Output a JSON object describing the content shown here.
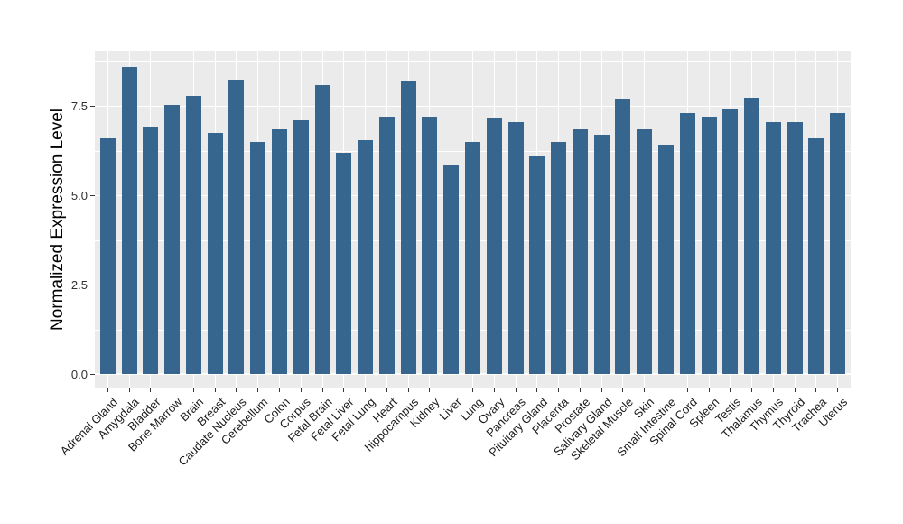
{
  "chart_data": {
    "type": "bar",
    "title": "",
    "xlabel": "",
    "ylabel": "Normalized Expression Level",
    "categories": [
      "Adrenal Gland",
      "Amygdala",
      "Bladder",
      "Bone Marrow",
      "Brain",
      "Breast",
      "Caudate Nucleus",
      "Cerebellum",
      "Colon",
      "Corpus",
      "Fetal Brain",
      "Fetal Liver",
      "Fetal Lung",
      "Heart",
      "hippocampus",
      "Kidney",
      "Liver",
      "Lung",
      "Ovary",
      "Pancreas",
      "Pituitary Gland",
      "Placenta",
      "Prostate",
      "Salivary Gland",
      "Skeletal Muscle",
      "Skin",
      "Small Intestine",
      "Spinal Cord",
      "Spleen",
      "Testis",
      "Thalamus",
      "Thymus",
      "Thyroid",
      "Trachea",
      "Uterus"
    ],
    "values": [
      6.6,
      8.6,
      6.9,
      7.55,
      7.8,
      6.75,
      8.25,
      6.5,
      6.85,
      7.1,
      8.1,
      6.2,
      6.55,
      7.2,
      8.2,
      7.2,
      5.85,
      6.5,
      7.15,
      7.05,
      6.1,
      6.5,
      6.85,
      6.7,
      7.7,
      6.85,
      6.4,
      7.3,
      7.2,
      7.4,
      7.75,
      7.05,
      7.05,
      6.6,
      7.3
    ],
    "ylim": [
      0,
      9.0
    ],
    "yticks": [
      0.0,
      2.5,
      5.0,
      7.5
    ],
    "ytick_labels": [
      "0.0",
      "2.5",
      "5.0",
      "7.5"
    ],
    "yticks_minor": [
      1.25,
      3.75,
      6.25,
      8.75
    ],
    "grid": true,
    "legend_position": "none",
    "bar_color": "#36668E",
    "panel_background": "#EBEBEB",
    "grid_color": "#FFFFFF",
    "tick_color": "#333333"
  }
}
